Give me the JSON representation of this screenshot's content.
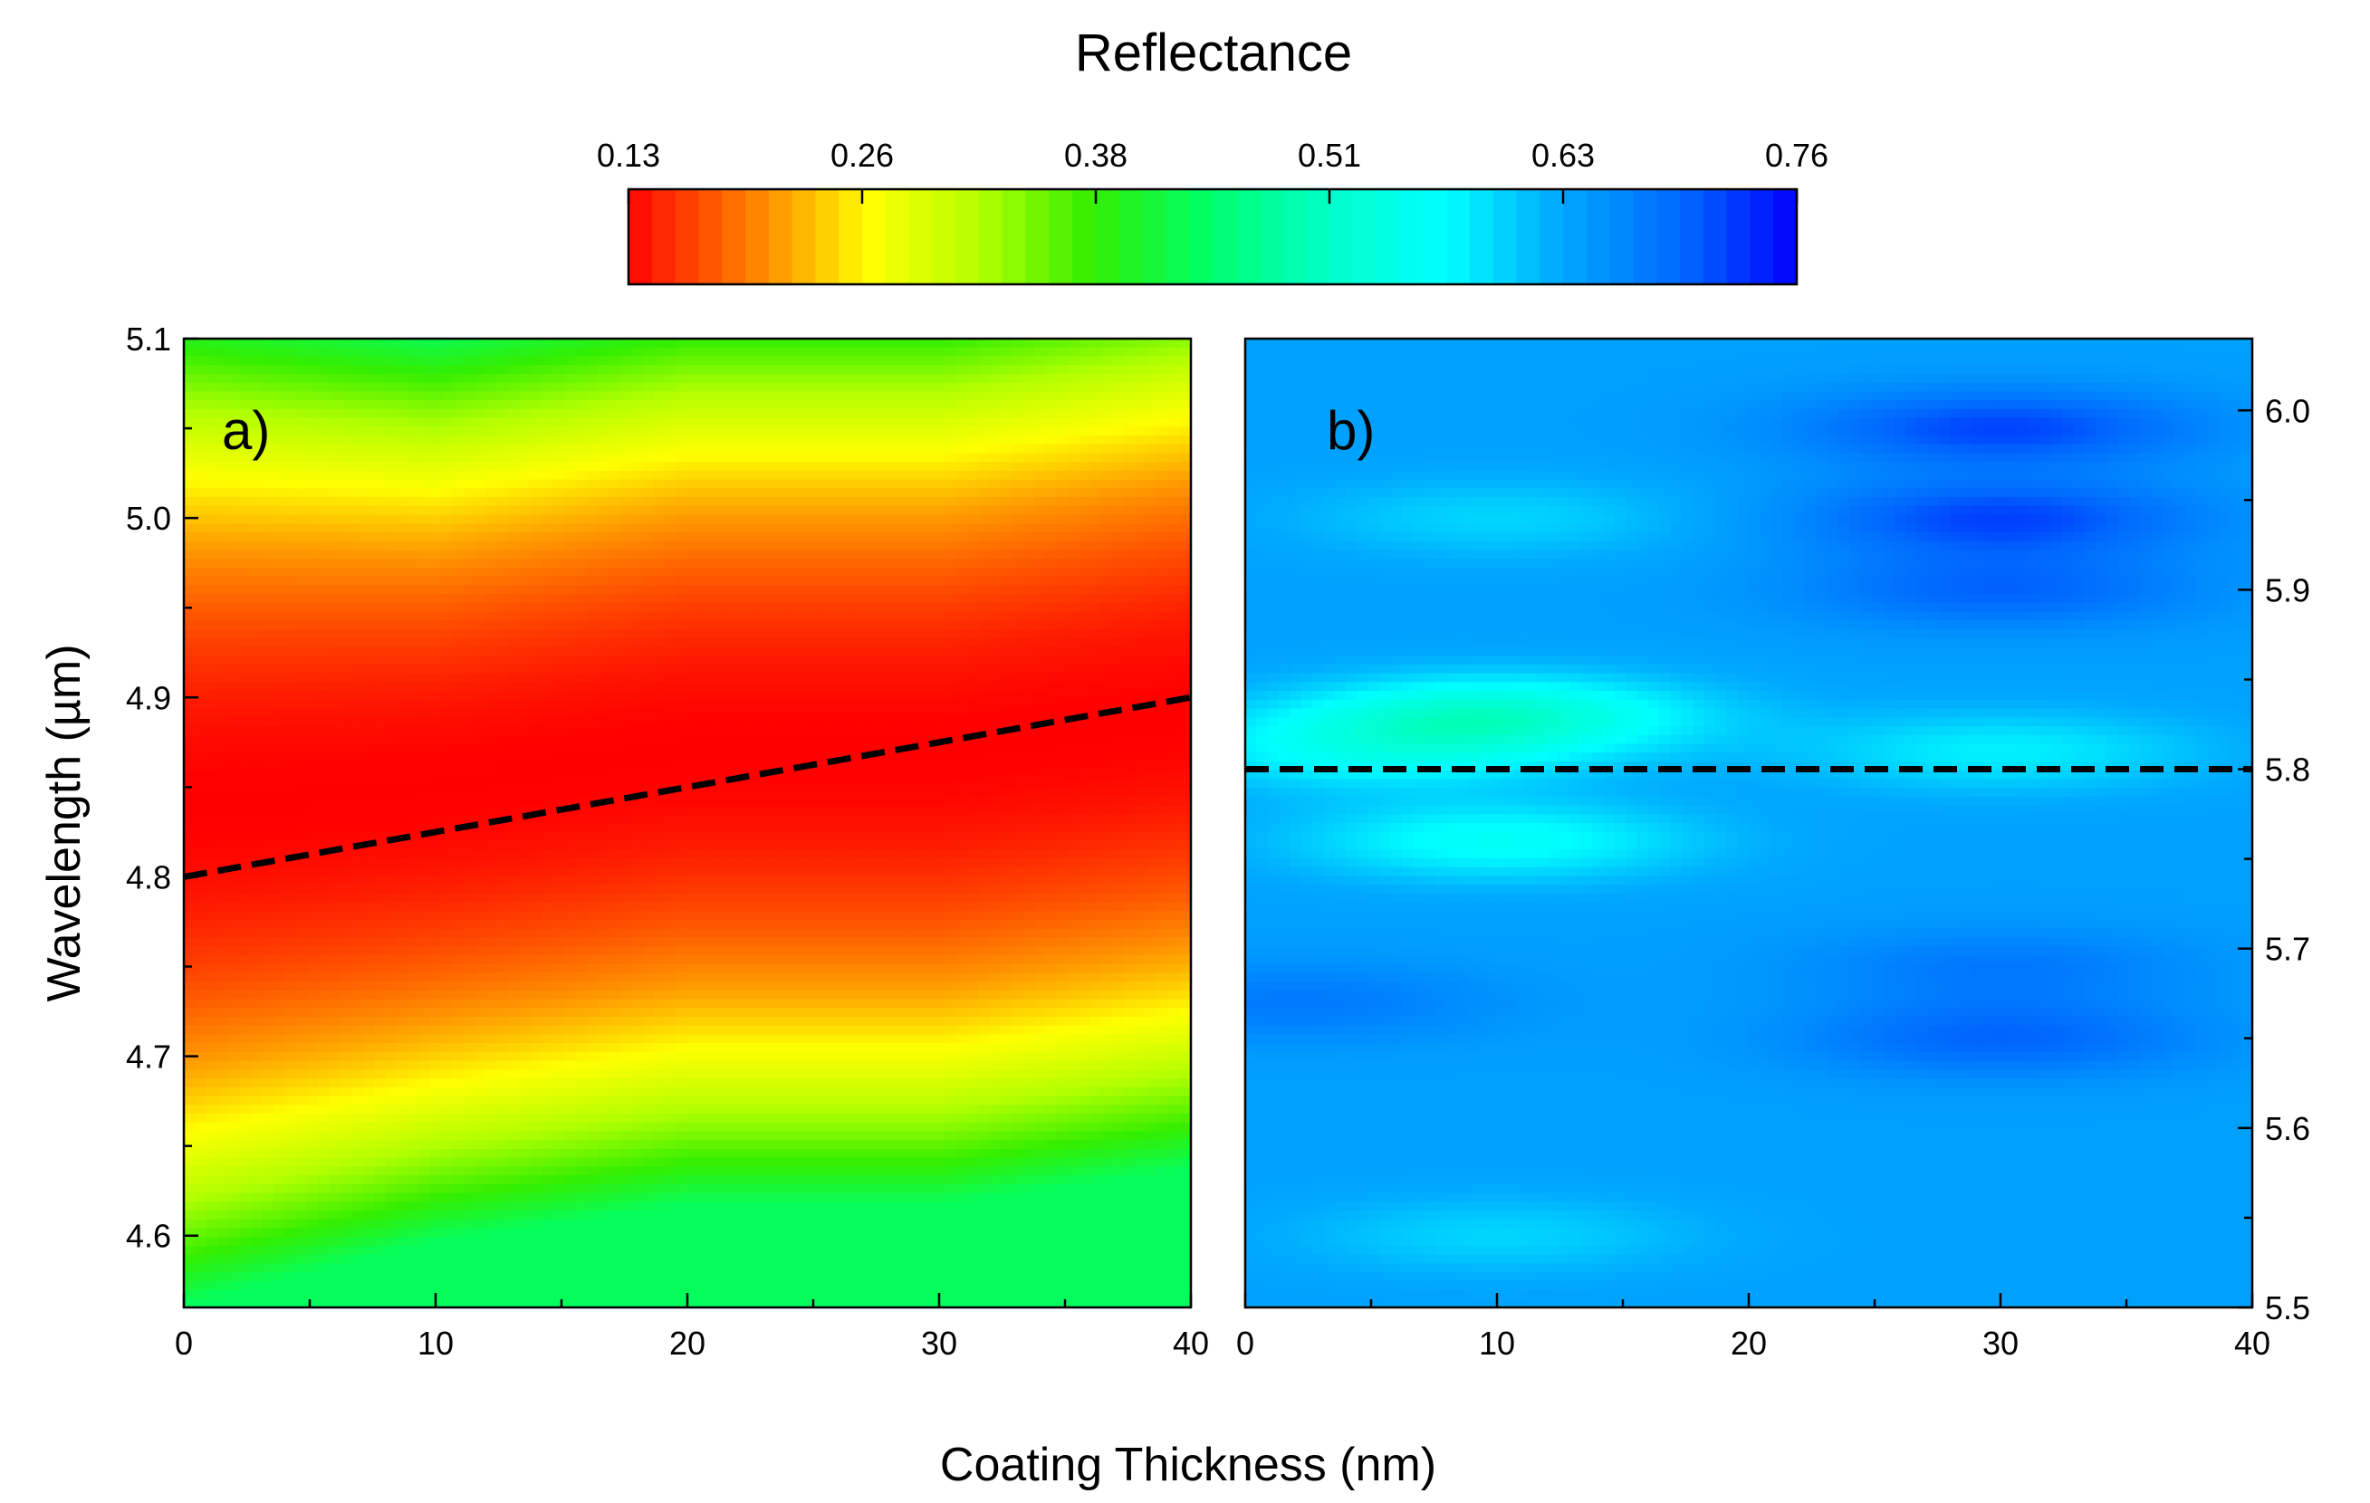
{
  "figure": {
    "colorbar_title": "Reflectance",
    "shared_xlabel": "Coating Thickness (nm)",
    "colorbar": {
      "ticks": [
        "0.13",
        "0.26",
        "0.38",
        "0.51",
        "0.63",
        "0.76"
      ],
      "range": [
        0.13,
        0.76
      ],
      "colormap": [
        {
          "value": 0.13,
          "color": "#ff0000"
        },
        {
          "value": 0.155,
          "color": "#ff3300"
        },
        {
          "value": 0.21,
          "color": "#ff9900"
        },
        {
          "value": 0.26,
          "color": "#ffff00"
        },
        {
          "value": 0.32,
          "color": "#b2ff00"
        },
        {
          "value": 0.38,
          "color": "#33ee00"
        },
        {
          "value": 0.44,
          "color": "#00ff66"
        },
        {
          "value": 0.51,
          "color": "#00ffcc"
        },
        {
          "value": 0.57,
          "color": "#00ffff"
        },
        {
          "value": 0.63,
          "color": "#00aaff"
        },
        {
          "value": 0.7,
          "color": "#0066ff"
        },
        {
          "value": 0.76,
          "color": "#0000ff"
        }
      ]
    }
  },
  "chart_data": [
    {
      "type": "heatmap",
      "panel_label": "a)",
      "title": "Reflectance",
      "xlabel": "Coating Thickness (nm)",
      "ylabel": "Wavelength (µm)",
      "xlim": [
        0,
        40
      ],
      "ylim": [
        4.56,
        5.1
      ],
      "x_ticks": [
        "0",
        "10",
        "20",
        "30",
        "40"
      ],
      "y_ticks": [
        "4.6",
        "4.7",
        "4.8",
        "4.9",
        "5.0",
        "5.1"
      ],
      "y_axis_side": "left",
      "minima_curve": {
        "x": [
          0,
          10,
          20,
          30,
          40
        ],
        "y": [
          4.84,
          4.85,
          4.87,
          4.87,
          4.89
        ]
      },
      "valley_halfwidth_um": [
        0.22,
        0.2,
        0.2,
        0.2,
        0.2
      ],
      "reflectance_min": 0.13,
      "reflectance_edge": 0.32,
      "dashed_line": {
        "x": [
          0,
          40
        ],
        "y": [
          4.8,
          4.9
        ]
      }
    },
    {
      "type": "heatmap",
      "panel_label": "b)",
      "title": "Reflectance",
      "xlabel": "Coating Thickness (nm)",
      "ylabel": "",
      "xlim": [
        0,
        40
      ],
      "ylim": [
        5.5,
        6.04
      ],
      "x_ticks": [
        "0",
        "10",
        "20",
        "30",
        "40"
      ],
      "y_ticks": [
        "5.5",
        "5.6",
        "5.7",
        "5.8",
        "5.9",
        "6.0"
      ],
      "y_axis_side": "right",
      "background_reflectance": 0.64,
      "features": [
        {
          "x": 10,
          "y": 5.83,
          "value": 0.52
        },
        {
          "x": 10,
          "y": 5.76,
          "value": 0.56
        },
        {
          "x": 5,
          "y": 5.81,
          "value": 0.57
        },
        {
          "x": 30,
          "y": 5.81,
          "value": 0.58
        },
        {
          "x": 30,
          "y": 5.99,
          "value": 0.72
        },
        {
          "x": 30,
          "y": 5.94,
          "value": 0.72
        },
        {
          "x": 30,
          "y": 5.9,
          "value": 0.7
        },
        {
          "x": 30,
          "y": 5.65,
          "value": 0.7
        },
        {
          "x": 30,
          "y": 5.69,
          "value": 0.68
        },
        {
          "x": 10,
          "y": 5.94,
          "value": 0.6
        },
        {
          "x": 2,
          "y": 5.67,
          "value": 0.68
        },
        {
          "x": 10,
          "y": 5.54,
          "value": 0.6
        }
      ],
      "dashed_line": {
        "x": [
          0,
          40
        ],
        "y": [
          5.8,
          5.8
        ]
      }
    }
  ]
}
